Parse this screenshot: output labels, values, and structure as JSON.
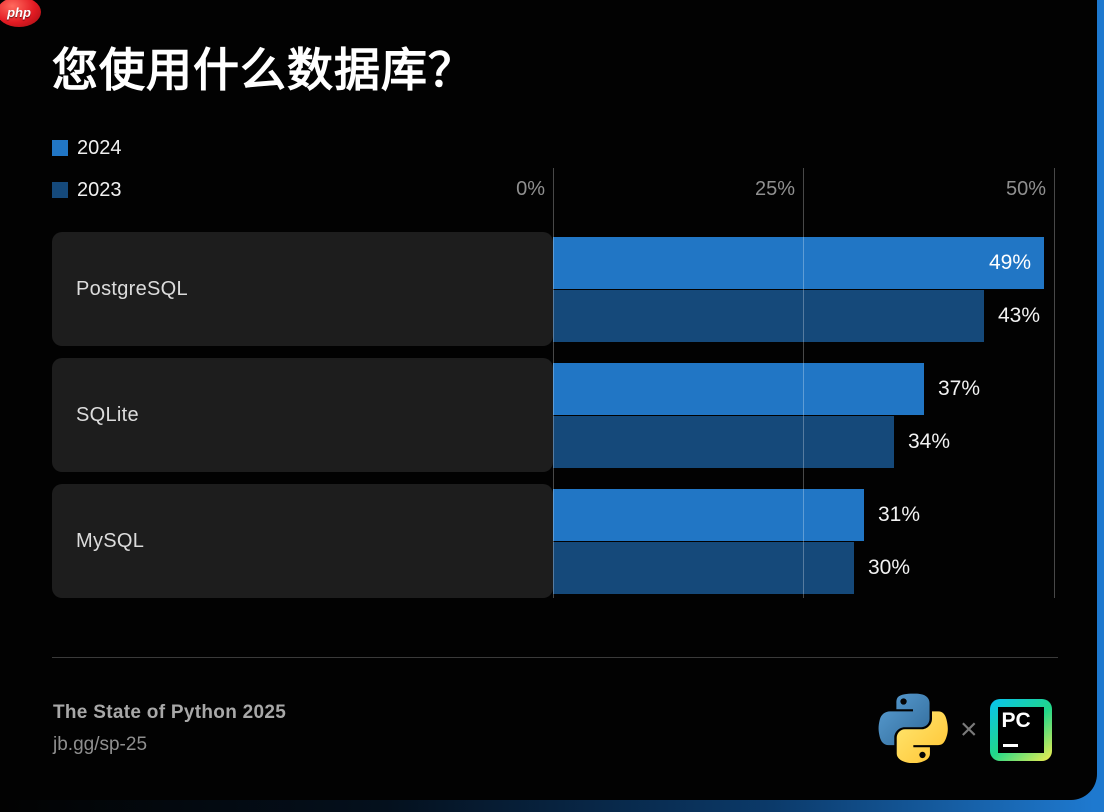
{
  "badge": {
    "label": "php"
  },
  "title": "您使用什么数据库？",
  "chart_data": {
    "type": "bar",
    "orientation": "horizontal",
    "title": "您使用什么数据库？",
    "categories": [
      "PostgreSQL",
      "SQLite",
      "MySQL"
    ],
    "series": [
      {
        "name": "2024",
        "color": "#2176c5",
        "values": [
          49,
          37,
          31
        ],
        "labels": [
          "49%",
          "37%",
          "31%"
        ]
      },
      {
        "name": "2023",
        "color": "#15497a",
        "values": [
          43,
          34,
          30
        ],
        "labels": [
          "43%",
          "34%",
          "30%"
        ]
      }
    ],
    "value_suffix": "%",
    "xlim": [
      0,
      50
    ],
    "xticks": [
      0,
      25,
      50
    ],
    "tick_labels": [
      "0%",
      "25%",
      "50%"
    ],
    "grid": "vertical",
    "legend_position": "top-left"
  },
  "colors": {
    "background": "#020202",
    "row_panel": "#1d1d1d",
    "gridline": "rgba(255,255,255,0.28)",
    "axis_text": "#8f8f8f",
    "edge_blue": "#1e79cf"
  },
  "footer": {
    "title": "The State of Python 2025",
    "link": "jb.gg/sp-25",
    "separator": "×",
    "pycharm_text": "PC"
  }
}
